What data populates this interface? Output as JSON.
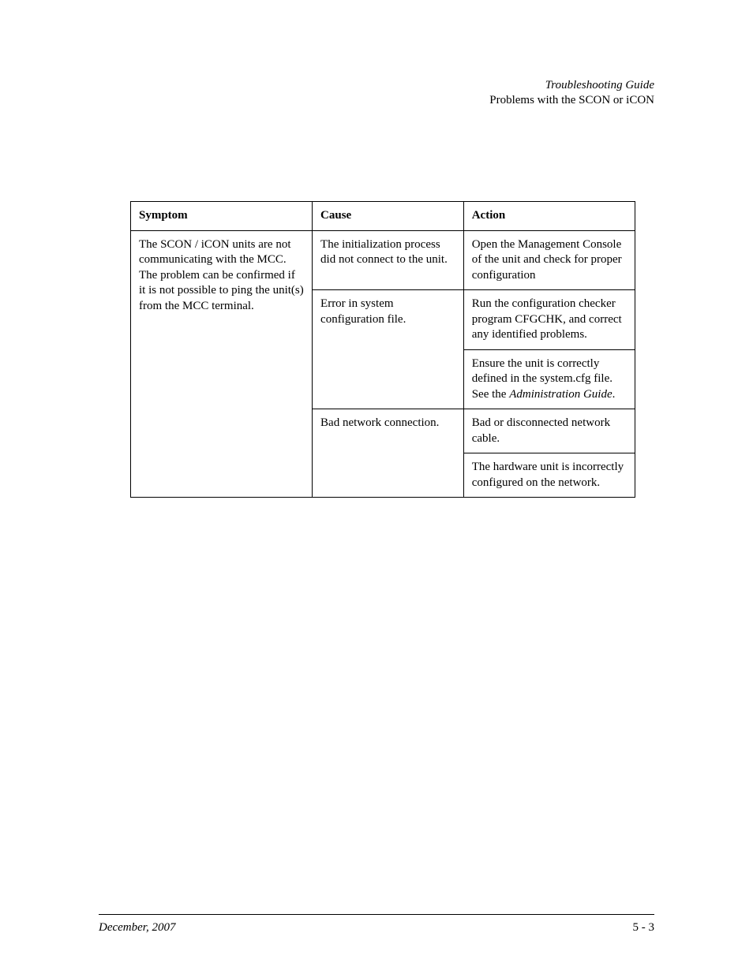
{
  "header": {
    "title": "Troubleshooting Guide",
    "subtitle": "Problems with the SCON or iCON"
  },
  "table": {
    "columns": [
      "Symptom",
      "Cause",
      "Action"
    ],
    "r1c1": "The SCON / iCON units are not communicating with the MCC.  The problem can be confirmed if it is not possible to ping the unit(s) from the MCC terminal.",
    "r1c2": "The initialization process did not connect to the unit.",
    "r1c3": "Open the Management Console of the unit and check for proper configuration",
    "r2c2": "Error in system configuration file.",
    "r2c3": "Run the configuration checker program CFGCHK, and correct any identified problems.",
    "r3c3_a": "Ensure the unit is correctly defined in the system.cfg file.  See the ",
    "r3c3_b": "Administration Guide",
    "r3c3_c": ".",
    "r4c2": "Bad network connection.",
    "r4c3": "Bad or disconnected network cable.",
    "r5c3": "The hardware unit is incorrectly configured on the network."
  },
  "footer": {
    "left": "December, 2007",
    "right": "5 - 3"
  }
}
